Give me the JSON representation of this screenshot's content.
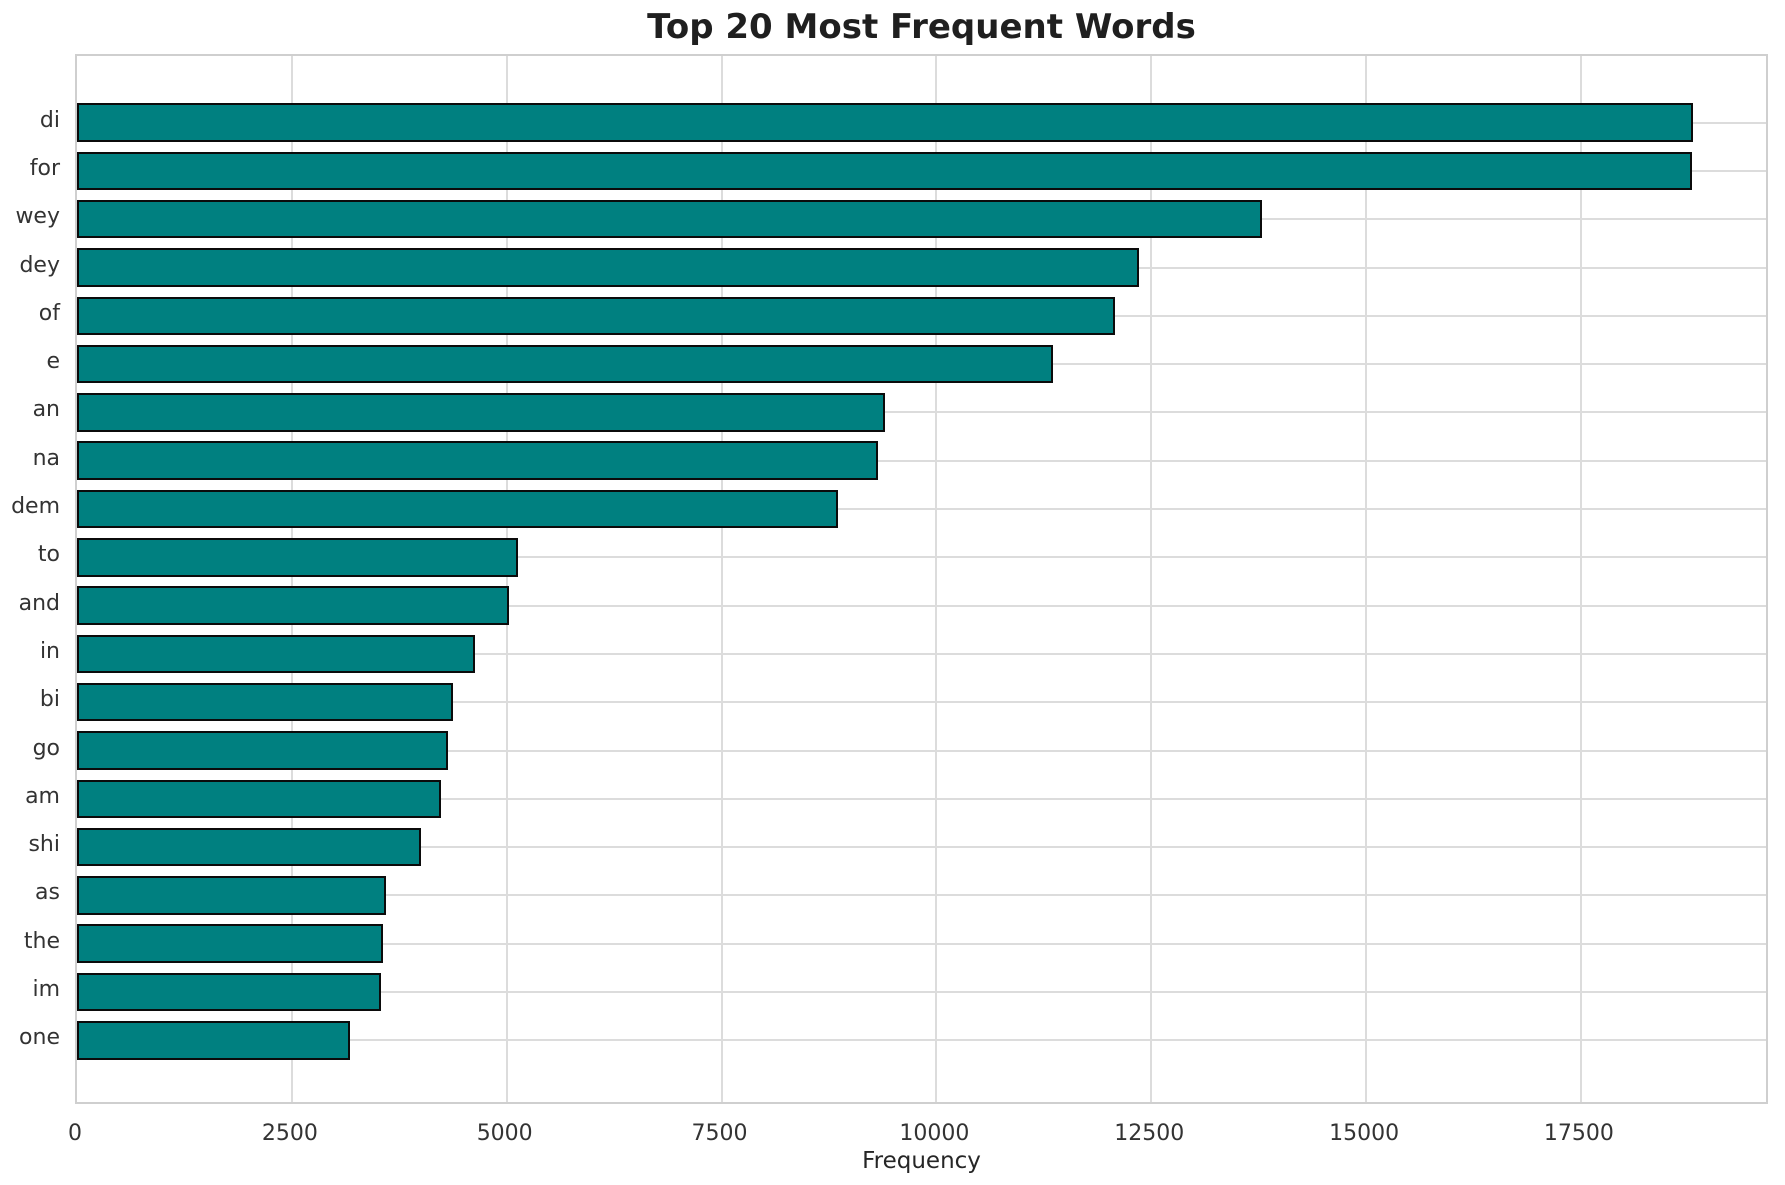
{
  "chart_data": {
    "type": "bar",
    "orientation": "horizontal",
    "title": "Top 20 Most Frequent Words",
    "xlabel": "Frequency",
    "ylabel": "",
    "categories": [
      "di",
      "for",
      "wey",
      "dey",
      "of",
      "e",
      "an",
      "na",
      "dem",
      "to",
      "and",
      "in",
      "bi",
      "go",
      "am",
      "shi",
      "as",
      "the",
      "im",
      "one"
    ],
    "values": [
      18800,
      18790,
      13790,
      12360,
      12080,
      11360,
      9400,
      9320,
      8850,
      5130,
      5030,
      4630,
      4380,
      4320,
      4240,
      4000,
      3590,
      3560,
      3540,
      3180
    ],
    "xticks": [
      0,
      2500,
      5000,
      7500,
      10000,
      12500,
      15000,
      17500
    ],
    "xtick_labels": [
      "0",
      "2500",
      "5000",
      "7500",
      "10000",
      "12500",
      "15000",
      "17500"
    ],
    "xlim": [
      0,
      19700
    ],
    "grid": "both",
    "legend": null,
    "colors": {
      "bar_fill": "#008080",
      "bar_edge": "#0b0b0b",
      "grid": "#dcdcdc",
      "spine": "#cfcfcf",
      "tick_text": "#333333",
      "title_text": "#1f1f1f",
      "background": "#ffffff"
    }
  }
}
